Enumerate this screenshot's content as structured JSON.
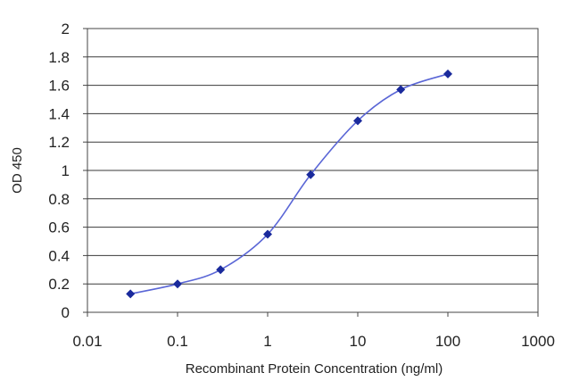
{
  "chart_data": {
    "type": "scatter",
    "xlabel": "Recombinant Protein Concentration (ng/ml)",
    "ylabel": "OD 450",
    "x_scale": "log",
    "xlim": [
      0.01,
      1000
    ],
    "ylim": [
      0,
      2
    ],
    "x_ticks": [
      0.01,
      0.1,
      1,
      10,
      100,
      1000
    ],
    "x_tick_labels": [
      "0.01",
      "0.1",
      "1",
      "10",
      "100",
      "1000"
    ],
    "y_ticks": [
      0,
      0.2,
      0.4,
      0.6,
      0.8,
      1,
      1.2,
      1.4,
      1.6,
      1.8,
      2
    ],
    "y_tick_labels": [
      "0",
      "0.2",
      "0.4",
      "0.6",
      "0.8",
      "1",
      "1.2",
      "1.4",
      "1.6",
      "1.8",
      "2"
    ],
    "grid": "horizontal",
    "series": [
      {
        "color": "#1a2a9c",
        "line_color": "#5a66d6",
        "marker": "diamond",
        "x": [
          0.03,
          0.1,
          0.3,
          1,
          3,
          10,
          30,
          100
        ],
        "y": [
          0.13,
          0.2,
          0.3,
          0.55,
          0.97,
          1.35,
          1.57,
          1.68
        ]
      }
    ]
  }
}
